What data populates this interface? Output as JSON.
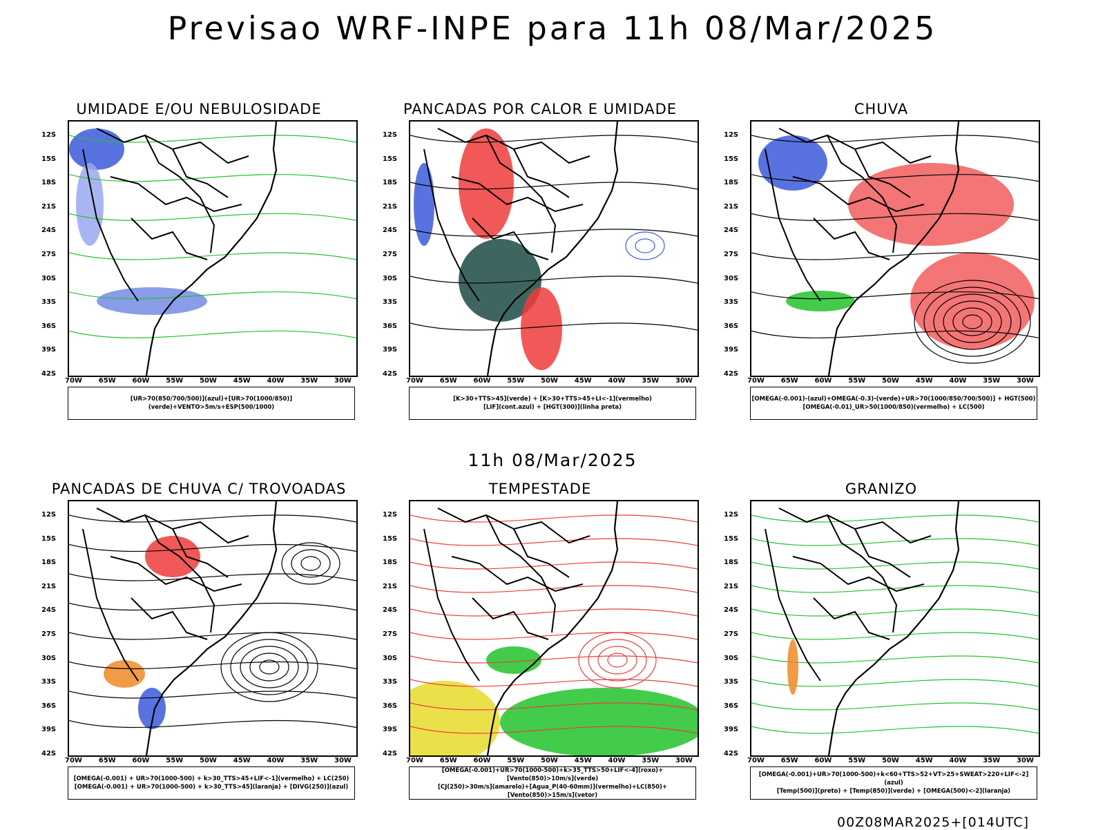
{
  "title": "Previsao WRF-INPE  para 11h 08/Mar/2025",
  "subtitle": "11h 08/Mar/2025",
  "footer": "00Z08MAR2025+[014UTC]",
  "axes": {
    "lat_ticks": [
      "12S",
      "15S",
      "18S",
      "21S",
      "24S",
      "27S",
      "30S",
      "33S",
      "36S",
      "39S",
      "42S"
    ],
    "lon_ticks": [
      "70W",
      "65W",
      "60W",
      "55W",
      "50W",
      "45W",
      "40W",
      "35W",
      "30W"
    ]
  },
  "colors": {
    "blue": "#3b5bdb",
    "green": "#22c32a",
    "red": "#ef3b3b",
    "teal": "#1d4a45",
    "yellow": "#e6dc2a",
    "orange": "#f08a24",
    "lightblue": "#9aa8f0"
  },
  "panels": [
    {
      "title": "UMIDADE E/OU NEBULOSIDADE",
      "legend_lines": [
        "[UR>70(850/700/500)](azul)+[UR>70(1000/850)](verde)+VENTO>5m/s+ESP(500/1000)"
      ]
    },
    {
      "title": "PANCADAS POR CALOR E UMIDADE",
      "legend_lines": [
        "[K>30+TTS>45](verde) + [K>30+TTS>45+LI<-1](vermelho)",
        "[LIF](cont.azul) + [HGT(300)](linha preta)"
      ]
    },
    {
      "title": "CHUVA",
      "legend_lines": [
        "[OMEGA(-0.001)-(azul)+OMEGA(-0.3)-(verde)+UR>70(1000/850/700/500)] + HGT(500)",
        "[OMEGA(-0.01)_UR>50(1000/850)(vermelho) + LC(500)"
      ]
    },
    {
      "title": "PANCADAS DE CHUVA C/ TROVOADAS",
      "legend_lines": [
        "[OMEGA(-0.001) + UR>70(1000-500) + k>30_TTS>45+LIF<-1](vermelho) + LC(250)",
        "[OMEGA(-0.001) + UR>70(1000-500) + k>30_TTS>45](laranja) + [DIVG(250)](azul)"
      ]
    },
    {
      "title": "TEMPESTADE",
      "legend_lines": [
        "[OMEGA(-0.001)+UR>70(1000-500)+k>35_TTS>50+LIF<-4](roxo)+[Vento(850)>10m/s](verde)",
        "[CJ(250)>30m/s](amarelo)+[Agua_P(40-60mm)](vermelho)+LC(850)+[Vento(850)>15m/s](vetor)"
      ]
    },
    {
      "title": "GRANIZO",
      "legend_lines": [
        "[OMEGA(-0.001)+UR>70(1000-500)+k<60+TTS>52+VT>25+SWEAT>220+LIF<-2](azul)",
        "[Temp(500)](preto) + [Temp(850)](verde) + [OMEGA(500)<-2](laranja)"
      ]
    }
  ]
}
